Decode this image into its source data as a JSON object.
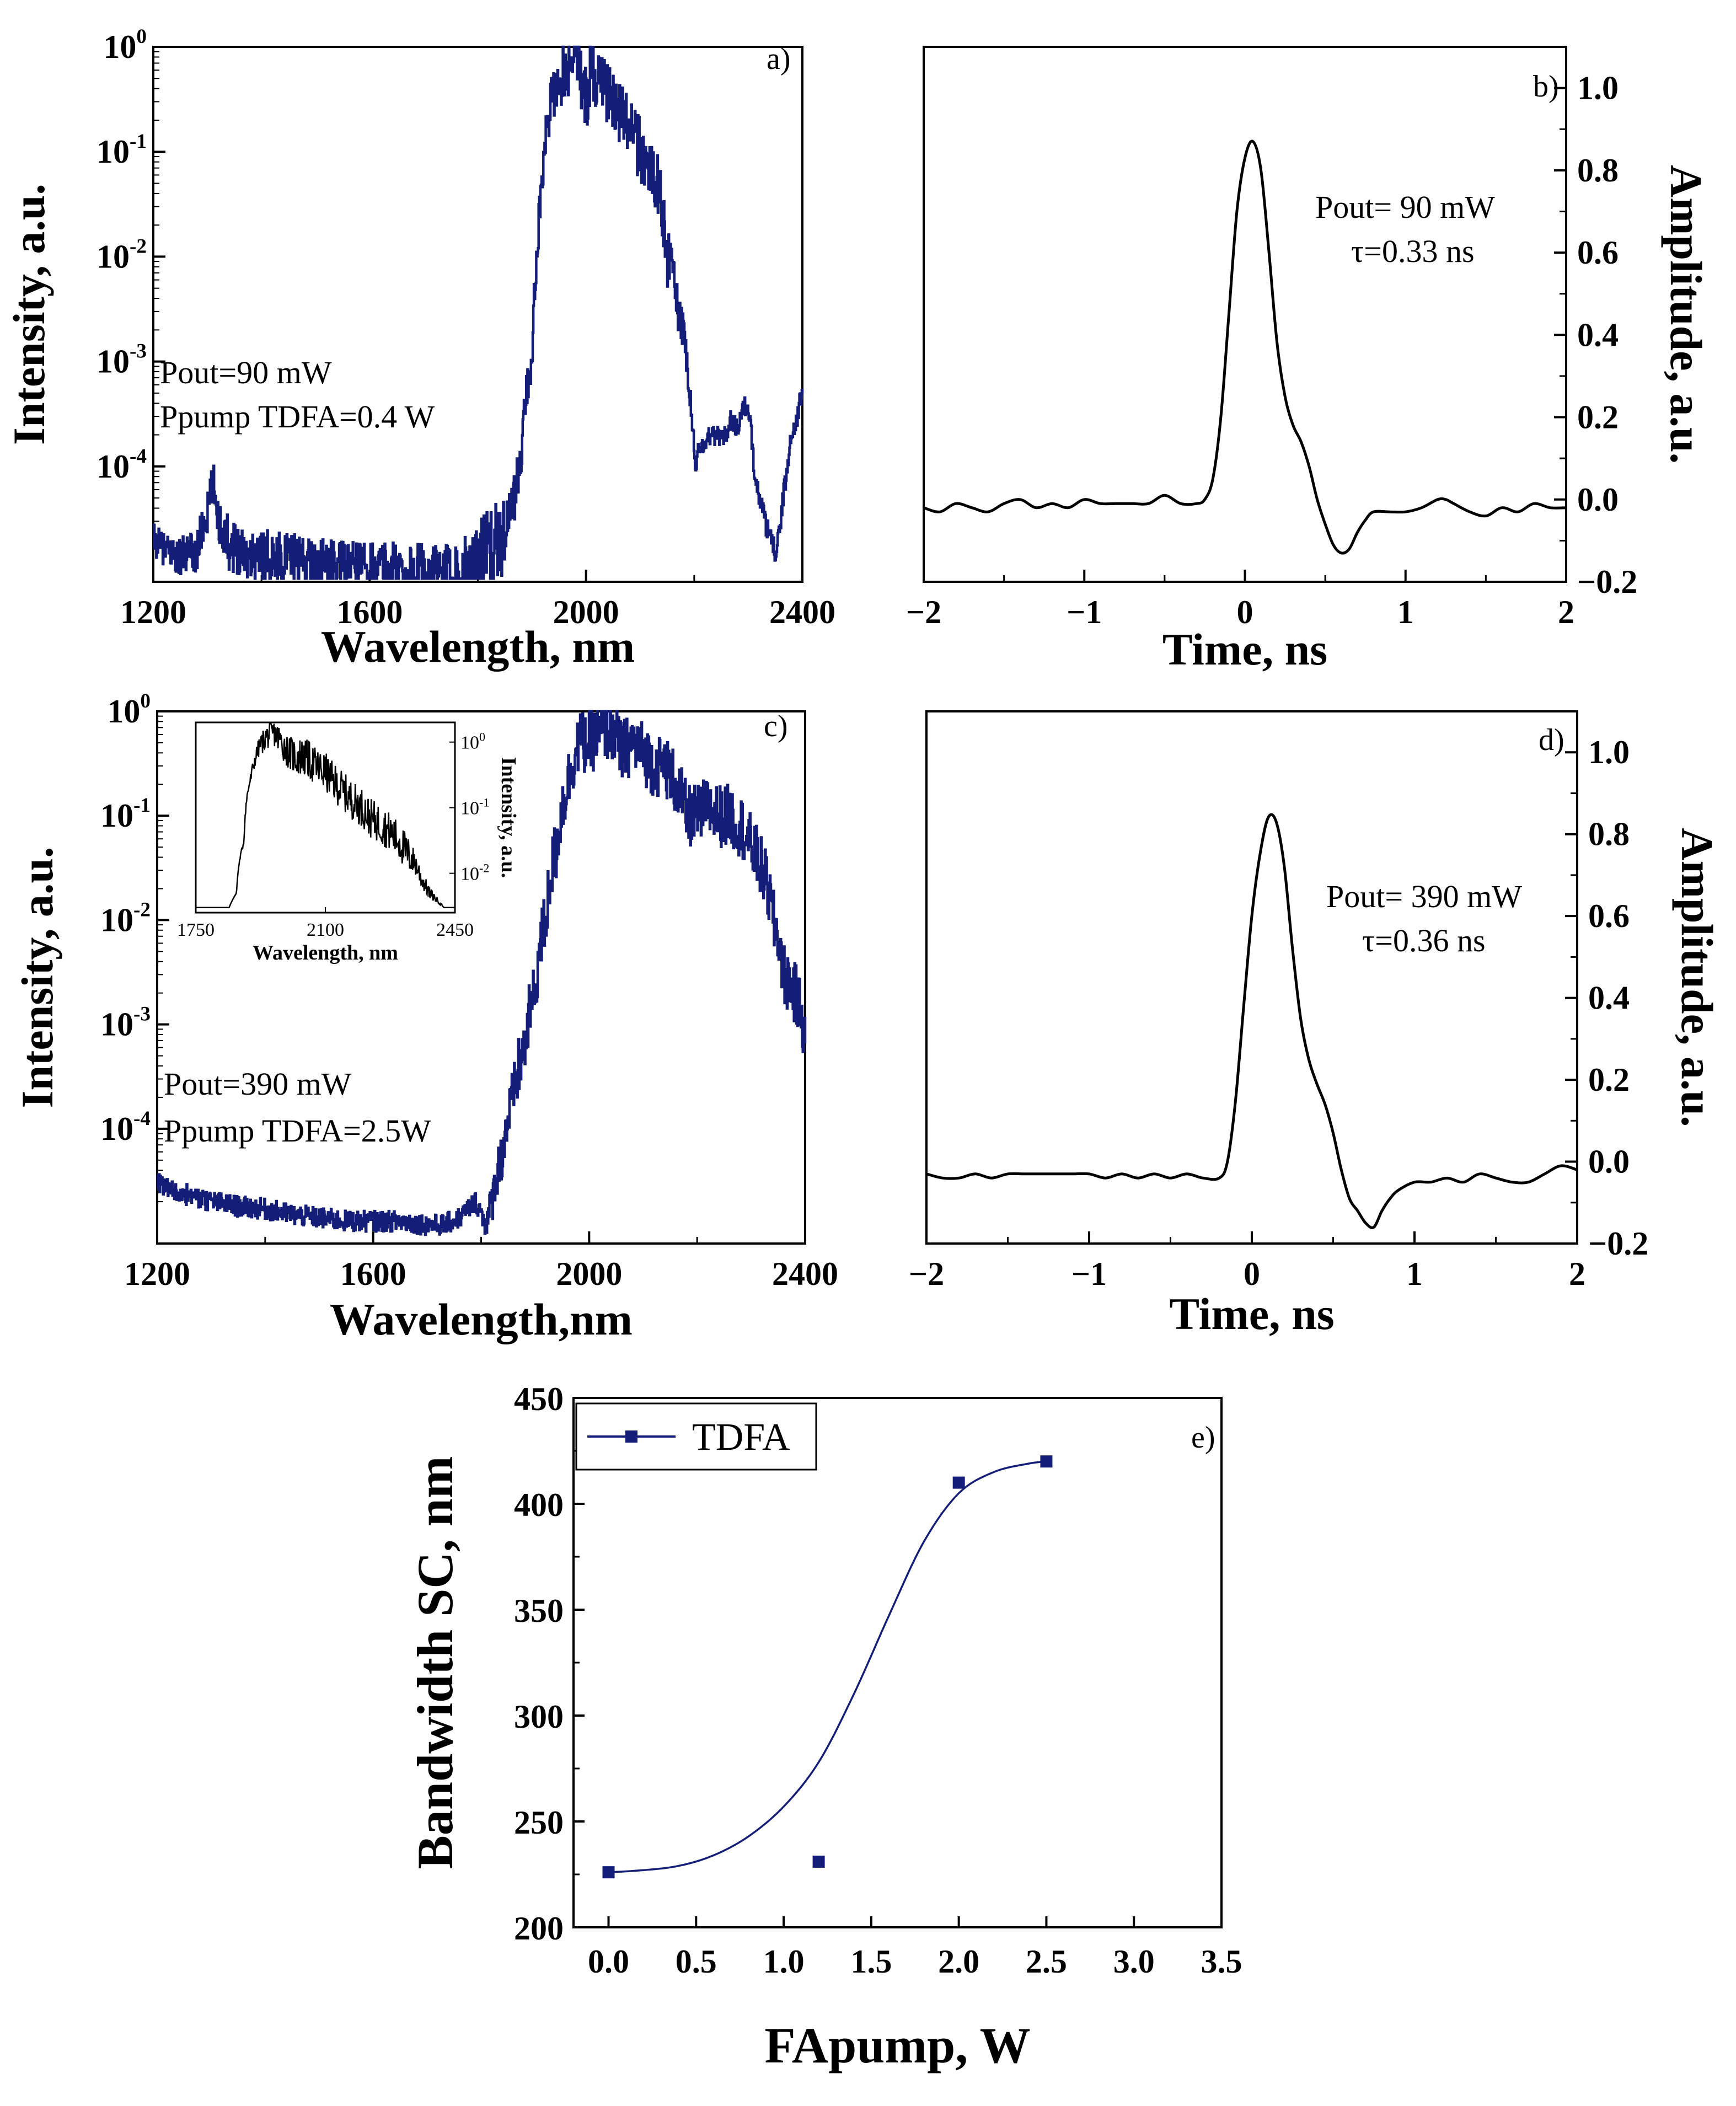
{
  "figure": {
    "colors": {
      "blue": "#141e78",
      "black": "#000000",
      "axis": "#000000",
      "bg": "#ffffff"
    }
  },
  "chart_data": [
    {
      "id": "a",
      "type": "line",
      "panel_label": "a)",
      "xlabel": "Wavelength, nm",
      "ylabel": "Intensity, a.u.",
      "yscale": "log",
      "xlim": [
        1200,
        2400
      ],
      "ylim_log10": [
        -5.1,
        0
      ],
      "x_ticks": [
        1200,
        1600,
        2000,
        2400
      ],
      "y_ticks": [
        {
          "base": "10",
          "exp": "0",
          "value": 0
        },
        {
          "base": "10",
          "exp": "-1",
          "value": -1
        },
        {
          "base": "10",
          "exp": "-2",
          "value": -2
        },
        {
          "base": "10",
          "exp": "-3",
          "value": -3
        },
        {
          "base": "10",
          "exp": "-4",
          "value": -4
        }
      ],
      "annotations": [
        "Pout=90 mW",
        "Ppump TDFA=0.4 W"
      ],
      "series": [
        {
          "name": "spectrum",
          "color": "#141e78",
          "x": [
            1200,
            1220,
            1250,
            1280,
            1300,
            1310,
            1320,
            1340,
            1380,
            1450,
            1550,
            1650,
            1750,
            1800,
            1840,
            1860,
            1880,
            1900,
            1910,
            1920,
            1930,
            1950,
            1970,
            1980,
            1990,
            2000,
            2010,
            2030,
            2050,
            2070,
            2100,
            2130,
            2150,
            2170,
            2190,
            2200,
            2210,
            2230,
            2260,
            2270,
            2280,
            2290,
            2300,
            2310,
            2320,
            2330,
            2340,
            2350,
            2360,
            2370,
            2380,
            2390,
            2400
          ],
          "y": [
            2e-05,
            1.6e-05,
            1.4e-05,
            1.5e-05,
            3.5e-05,
            7e-05,
            3e-05,
            1.8e-05,
            1.5e-05,
            1.3e-05,
            1.2e-05,
            1.1e-05,
            9e-06,
            1.2e-05,
            2e-05,
            3e-05,
            0.0001,
            0.001,
            0.01,
            0.06,
            0.2,
            0.5,
            0.7,
            1.0,
            0.5,
            0.3,
            0.6,
            0.4,
            0.3,
            0.2,
            0.1,
            0.05,
            0.01,
            0.003,
            0.0005,
            0.0001,
            0.00015,
            0.0002,
            0.0002,
            0.0003,
            0.0002,
            0.0004,
            0.0003,
            0.0001,
            5e-05,
            3e-05,
            2e-05,
            1.5e-05,
            3e-05,
            8e-05,
            0.0002,
            0.0003,
            0.0005
          ],
          "amplitude_noise_log10": [
            0.15,
            0.15,
            0.2,
            0.2,
            0.2,
            0.2,
            0.2,
            0.25,
            0.25,
            0.25,
            0.2,
            0.25,
            0.3,
            0.4,
            0.4,
            0.3,
            0.2,
            0.15,
            0.15,
            0.2,
            0.25,
            0.3,
            0.3,
            0.2,
            0.3,
            0.3,
            0.3,
            0.3,
            0.3,
            0.3,
            0.3,
            0.3,
            0.3,
            0.2,
            0.15,
            0.1,
            0.1,
            0.1,
            0.1,
            0.1,
            0.1,
            0.1,
            0.1,
            0.1,
            0.1,
            0.1,
            0.1,
            0.1,
            0.1,
            0.1,
            0.1,
            0.1,
            0.1
          ]
        }
      ]
    },
    {
      "id": "b",
      "type": "line",
      "panel_label": "b)",
      "xlabel": "Time, ns",
      "ylabel": "Amplitude, a.u.",
      "yaxis_side": "right",
      "xlim": [
        -2,
        2
      ],
      "ylim": [
        -0.2,
        1.1
      ],
      "x_ticks": [
        {
          "value": -2,
          "label": "−2"
        },
        {
          "value": -1,
          "label": "−1"
        },
        {
          "value": 0,
          "label": "0"
        },
        {
          "value": 1,
          "label": "1"
        },
        {
          "value": 2,
          "label": "2"
        }
      ],
      "y_ticks": [
        {
          "value": 1.0,
          "label": "1.0"
        },
        {
          "value": 0.8,
          "label": "0.8"
        },
        {
          "value": 0.6,
          "label": "0.6"
        },
        {
          "value": 0.4,
          "label": "0.4"
        },
        {
          "value": 0.2,
          "label": "0.2"
        },
        {
          "value": 0.0,
          "label": "0.0"
        },
        {
          "value": -0.2,
          "label": "−0.2"
        }
      ],
      "annotations": [
        "Pout= 90 mW",
        "τ=0.33 ns"
      ],
      "series": [
        {
          "name": "pulse",
          "color": "#000000",
          "x": [
            -2.0,
            -1.9,
            -1.8,
            -1.7,
            -1.6,
            -1.5,
            -1.4,
            -1.3,
            -1.2,
            -1.1,
            -1.0,
            -0.9,
            -0.8,
            -0.7,
            -0.6,
            -0.5,
            -0.4,
            -0.3,
            -0.25,
            -0.2,
            -0.15,
            -0.1,
            -0.05,
            0.0,
            0.05,
            0.1,
            0.15,
            0.2,
            0.25,
            0.3,
            0.35,
            0.4,
            0.45,
            0.5,
            0.55,
            0.6,
            0.65,
            0.7,
            0.75,
            0.8,
            0.9,
            1.0,
            1.1,
            1.2,
            1.25,
            1.3,
            1.4,
            1.5,
            1.6,
            1.7,
            1.8,
            1.9,
            2.0
          ],
          "y": [
            -0.02,
            -0.03,
            -0.01,
            -0.02,
            -0.03,
            -0.01,
            0.0,
            -0.02,
            -0.01,
            -0.02,
            0.0,
            -0.01,
            -0.01,
            -0.01,
            -0.01,
            0.01,
            -0.01,
            -0.01,
            0.0,
            0.05,
            0.2,
            0.45,
            0.7,
            0.83,
            0.87,
            0.8,
            0.6,
            0.38,
            0.25,
            0.18,
            0.14,
            0.08,
            0.0,
            -0.06,
            -0.11,
            -0.13,
            -0.12,
            -0.08,
            -0.05,
            -0.03,
            -0.03,
            -0.03,
            -0.02,
            0.0,
            0.0,
            -0.01,
            -0.03,
            -0.04,
            -0.02,
            -0.03,
            -0.01,
            -0.02,
            -0.02
          ]
        }
      ]
    },
    {
      "id": "c",
      "type": "line",
      "panel_label": "c)",
      "xlabel": "Wavelength,nm",
      "ylabel": "Intensity, a.u.",
      "yscale": "log",
      "xlim": [
        1200,
        2400
      ],
      "ylim_log10": [
        -5.1,
        0
      ],
      "x_ticks": [
        1200,
        1600,
        2000,
        2400
      ],
      "y_ticks": [
        {
          "base": "10",
          "exp": "0",
          "value": 0
        },
        {
          "base": "10",
          "exp": "-1",
          "value": -1
        },
        {
          "base": "10",
          "exp": "-2",
          "value": -2
        },
        {
          "base": "10",
          "exp": "-3",
          "value": -3
        },
        {
          "base": "10",
          "exp": "-4",
          "value": -4
        }
      ],
      "annotations": [
        "Pout=390 mW",
        "Ppump TDFA=2.5W"
      ],
      "series": [
        {
          "name": "spectrum",
          "color": "#141e78",
          "x": [
            1200,
            1230,
            1260,
            1300,
            1350,
            1400,
            1450,
            1500,
            1550,
            1600,
            1650,
            1700,
            1730,
            1760,
            1790,
            1800,
            1810,
            1820,
            1840,
            1860,
            1880,
            1900,
            1920,
            1940,
            1960,
            1980,
            2000,
            2020,
            2040,
            2060,
            2080,
            2100,
            2120,
            2140,
            2160,
            2180,
            2200,
            2220,
            2240,
            2260,
            2280,
            2300,
            2320,
            2340,
            2360,
            2380,
            2400
          ],
          "y": [
            3e-05,
            2.5e-05,
            2.3e-05,
            2e-05,
            1.8e-05,
            1.7e-05,
            1.5e-05,
            1.4e-05,
            1.3e-05,
            1.3e-05,
            1.3e-05,
            1.2e-05,
            1.2e-05,
            1.4e-05,
            2e-05,
            1.5e-05,
            1.2e-05,
            2e-05,
            6e-05,
            0.0002,
            0.0006,
            0.002,
            0.01,
            0.05,
            0.2,
            0.5,
            0.5,
            0.6,
            0.7,
            0.4,
            0.5,
            0.4,
            0.3,
            0.3,
            0.2,
            0.1,
            0.1,
            0.12,
            0.1,
            0.1,
            0.08,
            0.05,
            0.03,
            0.01,
            0.003,
            0.002,
            0.0008
          ],
          "amplitude_noise_log10": [
            0.1,
            0.1,
            0.1,
            0.1,
            0.1,
            0.1,
            0.1,
            0.1,
            0.1,
            0.1,
            0.1,
            0.1,
            0.1,
            0.1,
            0.1,
            0.1,
            0.15,
            0.2,
            0.25,
            0.3,
            0.3,
            0.3,
            0.3,
            0.3,
            0.3,
            0.3,
            0.3,
            0.3,
            0.3,
            0.3,
            0.3,
            0.3,
            0.3,
            0.3,
            0.3,
            0.3,
            0.3,
            0.3,
            0.3,
            0.3,
            0.3,
            0.3,
            0.3,
            0.3,
            0.3,
            0.3,
            0.3
          ]
        }
      ],
      "inset": {
        "type": "line",
        "xlabel": "Wavelength, nm",
        "ylabel": "Intensity, a.u.",
        "yscale": "log",
        "xlim": [
          1750,
          2450
        ],
        "ylim_log10": [
          -2.6,
          0.3
        ],
        "x_ticks": [
          1750,
          2100,
          2450
        ],
        "y_ticks": [
          {
            "base": "10",
            "exp": "0",
            "value": 0
          },
          {
            "base": "10",
            "exp": "-1",
            "value": -1
          },
          {
            "base": "10",
            "exp": "-2",
            "value": -2
          }
        ],
        "series": [
          {
            "name": "inset spectrum",
            "color": "#000000",
            "x": [
              1750,
              1800,
              1840,
              1860,
              1880,
              1900,
              1920,
              1940,
              1960,
              1980,
              2000,
              2020,
              2040,
              2060,
              2080,
              2100,
              2120,
              2140,
              2160,
              2180,
              2200,
              2220,
              2240,
              2260,
              2280,
              2300,
              2320,
              2340,
              2360,
              2380,
              2400,
              2420,
              2450
            ],
            "y": [
              0.003,
              0.003,
              0.003,
              0.005,
              0.03,
              0.3,
              0.8,
              1.2,
              1.4,
              1.0,
              0.7,
              0.6,
              0.6,
              0.5,
              0.4,
              0.35,
              0.25,
              0.2,
              0.15,
              0.12,
              0.1,
              0.07,
              0.06,
              0.05,
              0.04,
              0.03,
              0.02,
              0.015,
              0.008,
              0.005,
              0.004,
              0.003,
              0.003
            ],
            "amplitude_noise_log10": [
              0,
              0,
              0,
              0,
              0.05,
              0.1,
              0.15,
              0.2,
              0.2,
              0.25,
              0.25,
              0.3,
              0.3,
              0.3,
              0.3,
              0.3,
              0.3,
              0.3,
              0.3,
              0.3,
              0.3,
              0.3,
              0.3,
              0.3,
              0.3,
              0.3,
              0.3,
              0.2,
              0.15,
              0.1,
              0.05,
              0,
              0
            ]
          }
        ]
      }
    },
    {
      "id": "d",
      "type": "line",
      "panel_label": "d)",
      "xlabel": "Time, ns",
      "ylabel": "Amplitude, a.u.",
      "yaxis_side": "right",
      "xlim": [
        -2,
        2
      ],
      "ylim": [
        -0.2,
        1.1
      ],
      "x_ticks": [
        {
          "value": -2,
          "label": "−2"
        },
        {
          "value": -1,
          "label": "−1"
        },
        {
          "value": 0,
          "label": "0"
        },
        {
          "value": 1,
          "label": "1"
        },
        {
          "value": 2,
          "label": "2"
        }
      ],
      "y_ticks": [
        {
          "value": 1.0,
          "label": "1.0"
        },
        {
          "value": 0.8,
          "label": "0.8"
        },
        {
          "value": 0.6,
          "label": "0.6"
        },
        {
          "value": 0.4,
          "label": "0.4"
        },
        {
          "value": 0.2,
          "label": "0.2"
        },
        {
          "value": 0.0,
          "label": "0.0"
        },
        {
          "value": -0.2,
          "label": "−0.2"
        }
      ],
      "annotations": [
        "Pout= 390 mW",
        "τ=0.36 ns"
      ],
      "series": [
        {
          "name": "pulse",
          "color": "#000000",
          "x": [
            -2.0,
            -1.9,
            -1.8,
            -1.7,
            -1.6,
            -1.5,
            -1.4,
            -1.3,
            -1.2,
            -1.1,
            -1.0,
            -0.9,
            -0.8,
            -0.7,
            -0.6,
            -0.5,
            -0.4,
            -0.3,
            -0.2,
            -0.15,
            -0.1,
            -0.05,
            0.0,
            0.05,
            0.1,
            0.15,
            0.2,
            0.25,
            0.3,
            0.35,
            0.4,
            0.45,
            0.5,
            0.55,
            0.6,
            0.65,
            0.7,
            0.75,
            0.8,
            0.85,
            0.9,
            1.0,
            1.1,
            1.2,
            1.3,
            1.4,
            1.5,
            1.6,
            1.7,
            1.8,
            1.9,
            2.0
          ],
          "y": [
            -0.03,
            -0.04,
            -0.04,
            -0.03,
            -0.04,
            -0.03,
            -0.03,
            -0.03,
            -0.03,
            -0.03,
            -0.03,
            -0.04,
            -0.03,
            -0.04,
            -0.03,
            -0.04,
            -0.03,
            -0.04,
            -0.04,
            0.0,
            0.15,
            0.38,
            0.6,
            0.75,
            0.84,
            0.83,
            0.72,
            0.52,
            0.35,
            0.25,
            0.19,
            0.14,
            0.07,
            -0.02,
            -0.09,
            -0.12,
            -0.15,
            -0.16,
            -0.12,
            -0.09,
            -0.07,
            -0.05,
            -0.05,
            -0.04,
            -0.05,
            -0.03,
            -0.04,
            -0.05,
            -0.05,
            -0.03,
            -0.01,
            -0.02
          ]
        }
      ]
    },
    {
      "id": "e",
      "type": "scatter",
      "panel_label": "e)",
      "xlabel": "FApump, W",
      "ylabel": "Bandwidth SC, nm",
      "xlim": [
        -0.2,
        3.5
      ],
      "ylim": [
        200,
        450
      ],
      "x_ticks": [
        {
          "value": 0.0,
          "label": "0.0"
        },
        {
          "value": 0.5,
          "label": "0.5"
        },
        {
          "value": 1.0,
          "label": "1.0"
        },
        {
          "value": 1.5,
          "label": "1.5"
        },
        {
          "value": 2.0,
          "label": "2.0"
        },
        {
          "value": 2.5,
          "label": "2.5"
        },
        {
          "value": 3.0,
          "label": "3.0"
        },
        {
          "value": 3.5,
          "label": "3.5"
        }
      ],
      "y_ticks": [
        {
          "value": 200,
          "label": "200"
        },
        {
          "value": 250,
          "label": "250"
        },
        {
          "value": 300,
          "label": "300"
        },
        {
          "value": 350,
          "label": "350"
        },
        {
          "value": 400,
          "label": "400"
        },
        {
          "value": 450,
          "label": "450"
        }
      ],
      "legend": {
        "position": "top-left",
        "entries": [
          "TDFA"
        ]
      },
      "series": [
        {
          "name": "TDFA",
          "color": "#141e78",
          "x": [
            0.0,
            1.2,
            2.0,
            2.5
          ],
          "y": [
            226,
            231,
            410,
            420
          ],
          "fit": {
            "x": [
              0.0,
              0.2,
              0.4,
              0.6,
              0.8,
              1.0,
              1.2,
              1.4,
              1.6,
              1.8,
              2.0,
              2.2,
              2.4,
              2.5
            ],
            "y": [
              226,
              227,
              229,
              234,
              243,
              257,
              278,
              310,
              347,
              382,
              405,
              415,
              419,
              420
            ]
          }
        }
      ]
    }
  ]
}
